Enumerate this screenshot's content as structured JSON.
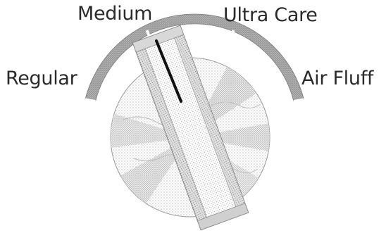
{
  "dial": {
    "settings": [
      "Medium",
      "Ultra Care",
      "Regular",
      "Air Fluff"
    ],
    "selected": "Medium"
  },
  "colors": {
    "ink": "#2a2a2a",
    "band": "#9a9a9a",
    "stipple": "#b8b8b8",
    "pointer": "#111111"
  }
}
